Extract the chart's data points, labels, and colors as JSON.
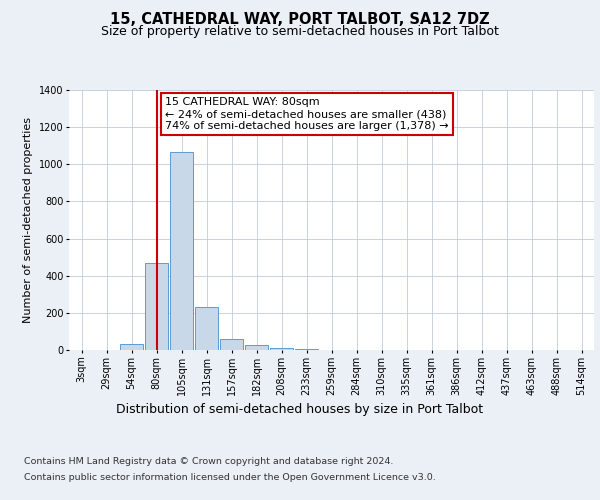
{
  "title": "15, CATHEDRAL WAY, PORT TALBOT, SA12 7DZ",
  "subtitle": "Size of property relative to semi-detached houses in Port Talbot",
  "xlabel": "Distribution of semi-detached houses by size in Port Talbot",
  "ylabel": "Number of semi-detached properties",
  "footnote1": "Contains HM Land Registry data © Crown copyright and database right 2024.",
  "footnote2": "Contains public sector information licensed under the Open Government Licence v3.0.",
  "bin_labels": [
    "3sqm",
    "29sqm",
    "54sqm",
    "80sqm",
    "105sqm",
    "131sqm",
    "157sqm",
    "182sqm",
    "208sqm",
    "233sqm",
    "259sqm",
    "284sqm",
    "310sqm",
    "335sqm",
    "361sqm",
    "386sqm",
    "412sqm",
    "437sqm",
    "463sqm",
    "488sqm",
    "514sqm"
  ],
  "bar_values": [
    0,
    0,
    30,
    470,
    1065,
    230,
    60,
    25,
    10,
    5,
    2,
    1,
    0,
    0,
    0,
    0,
    0,
    0,
    0,
    0,
    0
  ],
  "bar_color": "#c8d8e8",
  "bar_edge_color": "#5b9bd5",
  "property_bin_index": 3,
  "property_label": "15 CATHEDRAL WAY: 80sqm",
  "annotation_line1": "← 24% of semi-detached houses are smaller (438)",
  "annotation_line2": "74% of semi-detached houses are larger (1,378) →",
  "red_line_color": "#cc0000",
  "annotation_box_edge": "#cc0000",
  "ylim": [
    0,
    1400
  ],
  "yticks": [
    0,
    200,
    400,
    600,
    800,
    1000,
    1200,
    1400
  ],
  "bg_color": "#eaf0f6",
  "plot_bg_color": "#ffffff",
  "grid_color": "#c0ccda",
  "title_fontsize": 10.5,
  "subtitle_fontsize": 9,
  "axis_label_fontsize": 8,
  "tick_fontsize": 7,
  "annotation_fontsize": 8,
  "xlabel_fontsize": 9,
  "footnote_fontsize": 6.8
}
